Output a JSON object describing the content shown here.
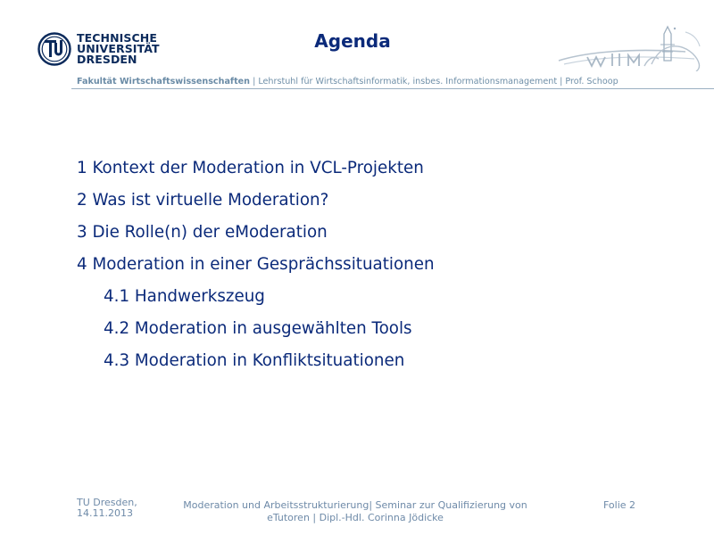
{
  "header": {
    "logo_lines": [
      "TECHNISCHE",
      "UNIVERSITÄT",
      "DRESDEN"
    ],
    "logo_icon": "tu-dresden-logo-icon",
    "title": "Agenda",
    "partner_logo_icon": "wiim-logo-icon",
    "faculty": "Fakultät Wirtschaftswissenschaften",
    "chair": " | Lehrstuhl für Wirtschaftsinformatik, insbes. Informationsmanagement | Prof. Schoop"
  },
  "agenda": {
    "items": [
      "1 Kontext der Moderation in VCL-Projekten",
      "2 Was ist virtuelle Moderation?",
      "3 Die Rolle(n) der eModeration",
      "4 Moderation in einer Gesprächssituationen",
      "4.1 Handwerkszeug",
      "4.2 Moderation in ausgewählten Tools",
      "4.3 Moderation in Konfliktsituationen"
    ]
  },
  "footer": {
    "date_line1": "TU Dresden,",
    "date_line2": "14.11.2013",
    "center_line1": "Moderation und Arbeitsstrukturierung| Seminar zur Qualifizierung von",
    "center_line2": "eTutoren | Dipl.-Hdl. Corinna Jödicke",
    "page": "Folie 2"
  },
  "colors": {
    "title": "#0b2a7a",
    "logo": "#0b2a5b",
    "muted": "#6e8aa8",
    "rule": "#9bb0c2"
  }
}
